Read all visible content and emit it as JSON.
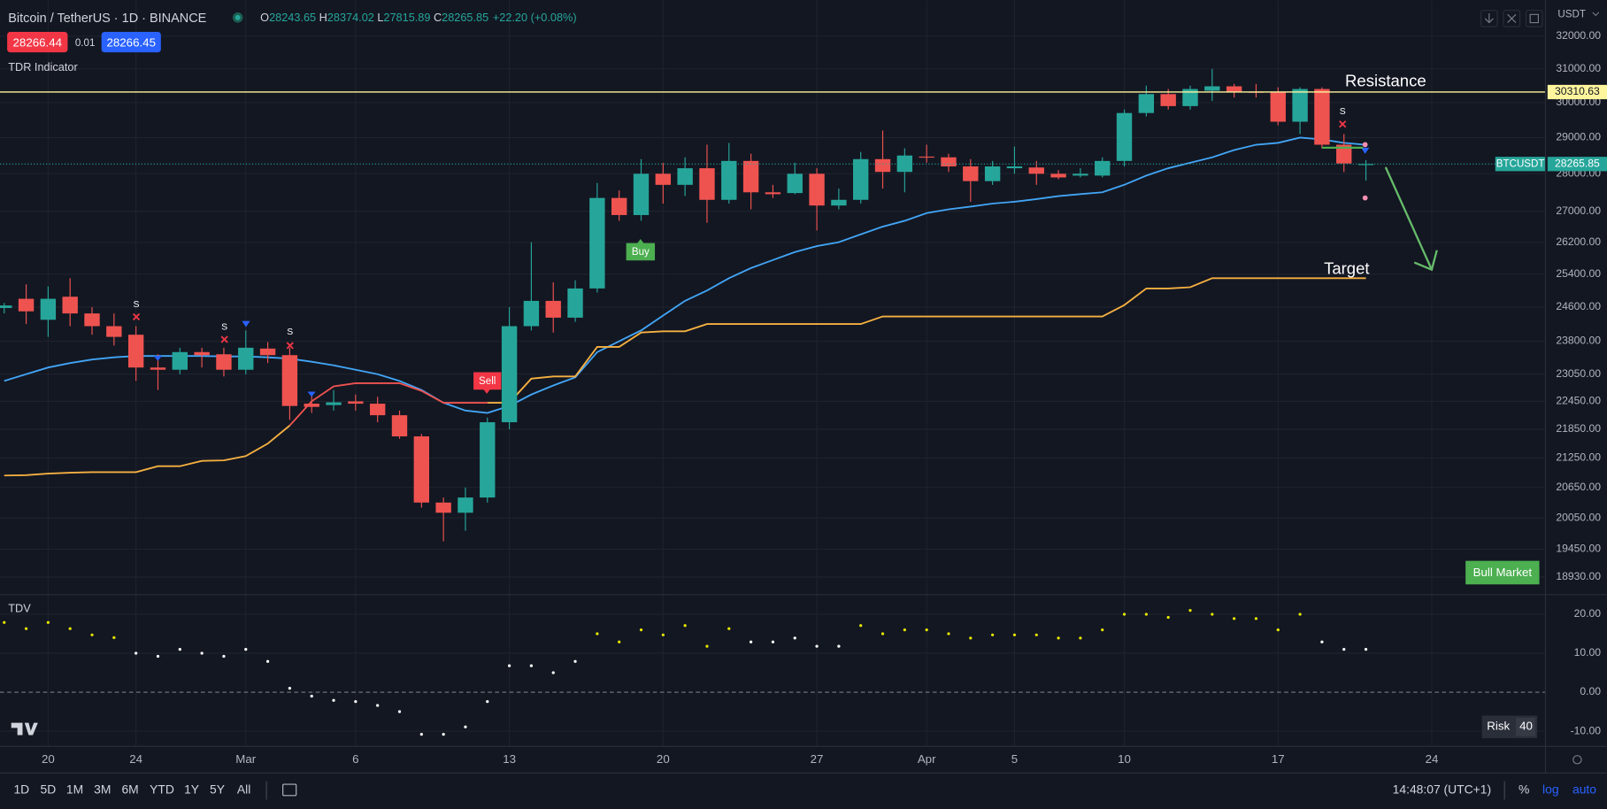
{
  "header": {
    "symbol": "Bitcoin / TetherUS · 1D · BINANCE",
    "ohlc": [
      [
        "O",
        "28243.65"
      ],
      [
        "H",
        "28374.02"
      ],
      [
        "L",
        "27815.89"
      ],
      [
        "C",
        "28265.85"
      ]
    ],
    "change": "+22.20 (+0.08%)",
    "sell_price": "28266.44",
    "spread": "0.01",
    "buy_price": "28266.45"
  },
  "toolbar": {
    "ranges": [
      "1D",
      "5D",
      "1M",
      "3M",
      "6M",
      "YTD",
      "1Y",
      "5Y",
      "All"
    ],
    "clock": "14:48:07 (UTC+1)",
    "percent": "%",
    "log": "log",
    "auto": "auto"
  },
  "chart_data": [
    {
      "type": "candlestick",
      "indicator": "TDR Indicator",
      "axis_currency": "USDT",
      "log_scale": true,
      "grid": true,
      "up_color": "#26a69a",
      "down_color": "#ef5350",
      "categories": [
        null,
        null,
        "20",
        null,
        null,
        null,
        "24",
        null,
        null,
        null,
        null,
        "Mar",
        null,
        null,
        null,
        null,
        "6",
        null,
        null,
        null,
        null,
        null,
        null,
        "13",
        null,
        null,
        null,
        null,
        null,
        null,
        "20",
        null,
        null,
        null,
        null,
        null,
        null,
        "27",
        null,
        null,
        null,
        null,
        "Apr",
        null,
        null,
        null,
        "5",
        null,
        null,
        null,
        null,
        "10",
        null,
        null,
        null,
        null,
        null,
        null,
        "17",
        null,
        null,
        null,
        null,
        null,
        null,
        "24"
      ],
      "open": [
        24580,
        24800,
        24300,
        24850,
        24450,
        24150,
        23950,
        23200,
        23150,
        23550,
        23500,
        23150,
        23630,
        23480,
        22400,
        22370,
        22450,
        22400,
        22150,
        21700,
        20350,
        20150,
        20450,
        22000,
        24150,
        24750,
        24350,
        25050,
        27350,
        26900,
        28000,
        27700,
        28150,
        27300,
        28350,
        27500,
        27480,
        28000,
        27150,
        27300,
        28400,
        28050,
        28470,
        28450,
        28200,
        27800,
        28150,
        28170,
        28000,
        27950,
        27950,
        28350,
        29700,
        30250,
        29900,
        30350,
        30480,
        30320,
        30300,
        29450,
        30400,
        28800,
        28243.65,
        null,
        null,
        null
      ],
      "high": [
        24700,
        25150,
        25100,
        25300,
        24600,
        24450,
        24150,
        23500,
        23650,
        23650,
        23650,
        24050,
        23780,
        23650,
        22600,
        22700,
        22600,
        22550,
        22250,
        21750,
        20450,
        20650,
        22100,
        24600,
        26200,
        25200,
        25250,
        27750,
        27550,
        28400,
        28300,
        28450,
        28800,
        28850,
        28550,
        27700,
        28300,
        28150,
        27600,
        28600,
        29200,
        28700,
        28800,
        28550,
        28400,
        28350,
        28750,
        28350,
        28100,
        28150,
        28450,
        29800,
        30500,
        30400,
        30500,
        31000,
        30550,
        30550,
        30450,
        30450,
        30450,
        29100,
        28374.02,
        null,
        null,
        null
      ],
      "low": [
        24450,
        24200,
        23900,
        24150,
        23950,
        23700,
        22900,
        22700,
        23050,
        23200,
        23000,
        23050,
        23300,
        22050,
        22200,
        22250,
        22250,
        22000,
        21650,
        20250,
        19600,
        19800,
        20350,
        21850,
        24050,
        24000,
        24250,
        24950,
        26750,
        26750,
        27200,
        27400,
        26700,
        27200,
        27050,
        27350,
        27450,
        26500,
        27050,
        27200,
        27600,
        27500,
        28300,
        28050,
        27250,
        27700,
        28000,
        27700,
        27850,
        27900,
        27900,
        28200,
        29600,
        29800,
        29800,
        30050,
        30150,
        30150,
        29350,
        29100,
        28700,
        28050,
        27815.89,
        null,
        null,
        null
      ],
      "close": [
        24640,
        24500,
        24800,
        24450,
        24150,
        23900,
        23200,
        23150,
        23550,
        23480,
        23150,
        23650,
        23480,
        22350,
        22330,
        22430,
        22400,
        22150,
        21700,
        20350,
        20150,
        20450,
        22000,
        24150,
        24750,
        24350,
        25050,
        27350,
        26900,
        28000,
        27700,
        28150,
        27300,
        28350,
        27500,
        27450,
        28000,
        27150,
        27300,
        28400,
        28050,
        28500,
        28450,
        28200,
        27800,
        28200,
        28200,
        28000,
        27900,
        28000,
        28350,
        29700,
        30250,
        29900,
        30400,
        30480,
        30320,
        30300,
        29450,
        30400,
        28800,
        28280,
        28265.85,
        null,
        null,
        null
      ],
      "lines": [
        {
          "color": "#42a5f5",
          "values": [
            22900,
            23050,
            23200,
            23300,
            23380,
            23430,
            23460,
            23460,
            23460,
            23460,
            23450,
            23450,
            23430,
            23400,
            23330,
            23250,
            23150,
            23050,
            22900,
            22700,
            22420,
            22250,
            22200,
            22350,
            22600,
            22800,
            22980,
            23550,
            23800,
            24050,
            24400,
            24750,
            25000,
            25300,
            25550,
            25750,
            25950,
            26100,
            26200,
            26400,
            26600,
            26750,
            26950,
            27050,
            27120,
            27200,
            27250,
            27320,
            27400,
            27450,
            27500,
            27700,
            27950,
            28150,
            28300,
            28450,
            28650,
            28800,
            28850,
            29000,
            28950,
            28850,
            28800,
            null,
            null,
            null
          ]
        },
        {
          "color": "#f5b041",
          "values": [
            20890,
            20900,
            20930,
            20950,
            20960,
            20960,
            20960,
            21080,
            21080,
            21190,
            21200,
            21290,
            21550,
            21930,
            null,
            null,
            null,
            null,
            null,
            null,
            null,
            null,
            22420,
            22420,
            22950,
            23000,
            23000,
            23670,
            23670,
            24000,
            24030,
            24030,
            24200,
            24200,
            24200,
            24200,
            24200,
            24200,
            24200,
            24200,
            24380,
            24380,
            24380,
            24380,
            24380,
            24380,
            24380,
            24380,
            24380,
            24380,
            24380,
            24650,
            25050,
            25050,
            25080,
            25300,
            25300,
            25300,
            25300,
            25300,
            25300,
            25300,
            25300,
            null,
            null,
            null
          ]
        },
        {
          "color": "#ef5350",
          "values": [
            null,
            null,
            null,
            null,
            null,
            null,
            null,
            null,
            null,
            null,
            null,
            null,
            null,
            21930,
            22450,
            22780,
            22850,
            22850,
            22850,
            22680,
            22420,
            22420,
            22420,
            null,
            null,
            null,
            null,
            null,
            null,
            null,
            null,
            null,
            null,
            null,
            null,
            null,
            null,
            null,
            null,
            null,
            null,
            null,
            null,
            null,
            null,
            null,
            null,
            null,
            null,
            null,
            null,
            null,
            null,
            null,
            null,
            null,
            null,
            null,
            null,
            null,
            null,
            null,
            null,
            null,
            null,
            null
          ]
        }
      ],
      "resistance": {
        "label": "Resistance",
        "value": 30310.63,
        "color": "#fff59d"
      },
      "last_price": {
        "symbol": "BTCUSDT",
        "value": 28265.85,
        "color": "#26a69a"
      },
      "target_label": "Target",
      "buy_label": "Buy",
      "sell_label": "Sell",
      "signal_label": "S",
      "badge": "Bull Market",
      "ylim": [
        18610,
        33140
      ],
      "yticks": [
        {
          "value": 32000,
          "label": "32000.00"
        },
        {
          "value": 31000,
          "label": "31000.00"
        },
        {
          "value": 30000,
          "label": "30000.00"
        },
        {
          "value": 29000,
          "label": "29000.00"
        },
        {
          "value": 28000,
          "label": "28000.00"
        },
        {
          "value": 27000,
          "label": "27000.00"
        },
        {
          "value": 26200,
          "label": "26200.00"
        },
        {
          "value": 25400,
          "label": "25400.00"
        },
        {
          "value": 24600,
          "label": "24600.00"
        },
        {
          "value": 23800,
          "label": "23800.00"
        },
        {
          "value": 23050,
          "label": "23050.00"
        },
        {
          "value": 22450,
          "label": "22450.00"
        },
        {
          "value": 21850,
          "label": "21850.00"
        },
        {
          "value": 21250,
          "label": "21250.00"
        },
        {
          "value": 20650,
          "label": "20650.00"
        },
        {
          "value": 20050,
          "label": "20050.00"
        },
        {
          "value": 19450,
          "label": "19450.00"
        },
        {
          "value": 18930,
          "label": "18930.00"
        }
      ]
    },
    {
      "type": "dot",
      "title": "TDV",
      "risk_label": "Risk",
      "risk_value": 40,
      "grid": true,
      "ylim": [
        -13.9,
        24.5
      ],
      "yticks": [
        {
          "value": 20,
          "label": "20.00"
        },
        {
          "value": 10,
          "label": "10.00"
        },
        {
          "value": 0,
          "label": "0.00"
        },
        {
          "value": -10,
          "label": "-10.00"
        }
      ],
      "series": [
        {
          "color": "#e6e600",
          "values": [
            17.9,
            16.3,
            17.9,
            16.3,
            14.7,
            14,
            null,
            null,
            null,
            null,
            null,
            null,
            null,
            null,
            null,
            null,
            null,
            null,
            null,
            null,
            null,
            null,
            null,
            null,
            null,
            null,
            null,
            15,
            12.9,
            16,
            14.7,
            17.1,
            11.8,
            16.3,
            null,
            null,
            null,
            null,
            null,
            17.1,
            15,
            16,
            16,
            15,
            13.9,
            14.7,
            14.7,
            14.7,
            13.9,
            13.9,
            16,
            20,
            20,
            19.2,
            21,
            20,
            18.9,
            18.9,
            16,
            20,
            null,
            null,
            null,
            null,
            null,
            null
          ]
        },
        {
          "color": "#ffffff",
          "values": [
            null,
            null,
            null,
            null,
            null,
            null,
            10,
            9.2,
            11,
            10,
            9.2,
            11,
            7.9,
            1,
            -1,
            -2.1,
            -2.4,
            -3.4,
            -5,
            -10.8,
            -10.8,
            -8.9,
            -2.4,
            6.8,
            6.8,
            5,
            7.9,
            null,
            null,
            null,
            null,
            null,
            null,
            null,
            12.9,
            12.9,
            13.9,
            11.8,
            11.8,
            null,
            null,
            null,
            null,
            null,
            null,
            null,
            null,
            null,
            null,
            null,
            null,
            null,
            null,
            null,
            null,
            null,
            null,
            null,
            null,
            null,
            12.9,
            11,
            11,
            null,
            null,
            null
          ]
        }
      ]
    }
  ]
}
